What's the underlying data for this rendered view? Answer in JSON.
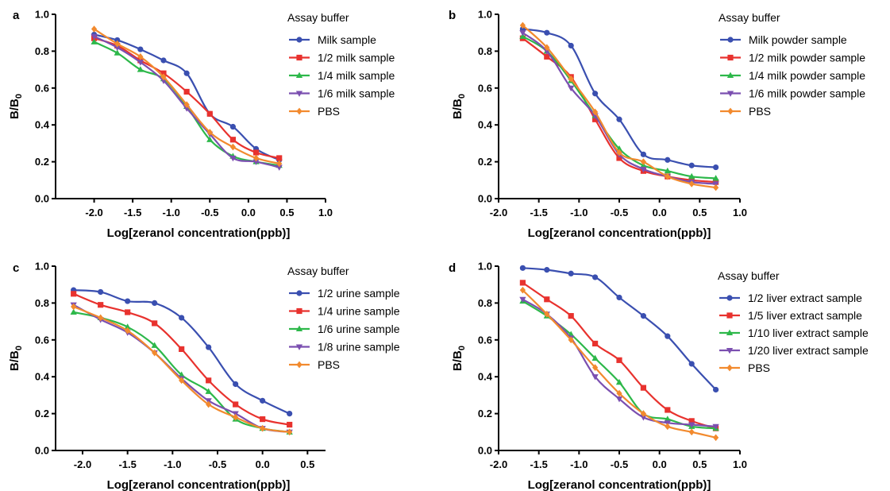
{
  "chart_data": [
    {
      "panel": "a",
      "type": "line",
      "xlabel": "Log[zeranol concentration(ppb)]",
      "ylabel": "B/B0",
      "xlim": [
        -2.5,
        1.0
      ],
      "ylim": [
        0.0,
        1.0
      ],
      "xticks": [
        "-2.0",
        "-1.5",
        "-1.0",
        "-0.5",
        "0.0",
        "0.5",
        "1.0"
      ],
      "yticks": [
        "0.0",
        "0.2",
        "0.4",
        "0.6",
        "0.8",
        "1.0"
      ],
      "legend_title": "Assay buffer",
      "legend_position": "top-right",
      "x": [
        -2.0,
        -1.7,
        -1.4,
        -1.1,
        -0.8,
        -0.5,
        -0.2,
        0.1,
        0.4
      ],
      "series": [
        {
          "name": "Milk sample",
          "color": "#3a4fb0",
          "marker": "circle",
          "values": [
            0.89,
            0.86,
            0.81,
            0.75,
            0.68,
            0.46,
            0.39,
            0.27,
            0.21
          ]
        },
        {
          "name": "1/2 milk sample",
          "color": "#e8322e",
          "marker": "square",
          "values": [
            0.87,
            0.83,
            0.75,
            0.68,
            0.58,
            0.46,
            0.32,
            0.25,
            0.22
          ]
        },
        {
          "name": "1/4 milk sample",
          "color": "#2db84a",
          "marker": "triangle-up",
          "values": [
            0.85,
            0.79,
            0.7,
            0.65,
            0.5,
            0.32,
            0.23,
            0.2,
            0.18
          ]
        },
        {
          "name": "1/6 milk sample",
          "color": "#7b4fb0",
          "marker": "triangle-down",
          "values": [
            0.88,
            0.82,
            0.74,
            0.64,
            0.49,
            0.35,
            0.22,
            0.2,
            0.17
          ]
        },
        {
          "name": "PBS",
          "color": "#f28a2e",
          "marker": "diamond",
          "values": [
            0.92,
            0.84,
            0.77,
            0.66,
            0.51,
            0.36,
            0.28,
            0.22,
            0.19
          ]
        }
      ]
    },
    {
      "panel": "b",
      "type": "line",
      "xlabel": "Log[zeranol concentration(ppb)]",
      "ylabel": "B/B0",
      "xlim": [
        -2.0,
        1.0
      ],
      "ylim": [
        0.0,
        1.0
      ],
      "xticks": [
        "-2.0",
        "-1.5",
        "-1.0",
        "-0.5",
        "0.0",
        "0.5",
        "1.0"
      ],
      "yticks": [
        "0.0",
        "0.2",
        "0.4",
        "0.6",
        "0.8",
        "1.0"
      ],
      "legend_title": "Assay buffer",
      "legend_position": "top-right",
      "x": [
        -1.7,
        -1.4,
        -1.1,
        -0.8,
        -0.5,
        -0.2,
        0.1,
        0.4,
        0.7
      ],
      "series": [
        {
          "name": "Milk powder sample",
          "color": "#3a4fb0",
          "marker": "circle",
          "values": [
            0.92,
            0.9,
            0.83,
            0.57,
            0.43,
            0.24,
            0.21,
            0.18,
            0.17
          ]
        },
        {
          "name": "1/2 milk powder sample",
          "color": "#e8322e",
          "marker": "square",
          "values": [
            0.87,
            0.77,
            0.66,
            0.43,
            0.22,
            0.15,
            0.12,
            0.1,
            0.09
          ]
        },
        {
          "name": "1/4 milk powder sample",
          "color": "#2db84a",
          "marker": "triangle-up",
          "values": [
            0.88,
            0.8,
            0.64,
            0.45,
            0.27,
            0.18,
            0.15,
            0.12,
            0.11
          ]
        },
        {
          "name": "1/6 milk powder sample",
          "color": "#7b4fb0",
          "marker": "triangle-down",
          "values": [
            0.9,
            0.8,
            0.6,
            0.45,
            0.24,
            0.16,
            0.12,
            0.09,
            0.08
          ]
        },
        {
          "name": "PBS",
          "color": "#f28a2e",
          "marker": "diamond",
          "values": [
            0.94,
            0.82,
            0.65,
            0.47,
            0.25,
            0.2,
            0.12,
            0.08,
            0.06
          ]
        }
      ]
    },
    {
      "panel": "c",
      "type": "line",
      "xlabel": "Log[zeranol concentration(ppb)]",
      "ylabel": "B/B0",
      "xlim": [
        -2.3,
        0.7
      ],
      "ylim": [
        0.0,
        1.0
      ],
      "xticks": [
        "-2.0",
        "-1.5",
        "-1.0",
        "-0.5",
        "0.0",
        "0.5"
      ],
      "yticks": [
        "0.0",
        "0.2",
        "0.4",
        "0.6",
        "0.8",
        "1.0"
      ],
      "legend_title": "Assay buffer",
      "legend_position": "top-right",
      "x": [
        -2.1,
        -1.8,
        -1.5,
        -1.2,
        -0.9,
        -0.6,
        -0.3,
        0.0,
        0.3
      ],
      "series": [
        {
          "name": "1/2 urine sample",
          "color": "#3a4fb0",
          "marker": "circle",
          "values": [
            0.87,
            0.86,
            0.81,
            0.8,
            0.72,
            0.56,
            0.36,
            0.27,
            0.2
          ]
        },
        {
          "name": "1/4 urine sample",
          "color": "#e8322e",
          "marker": "square",
          "values": [
            0.85,
            0.79,
            0.75,
            0.69,
            0.55,
            0.38,
            0.25,
            0.17,
            0.14
          ]
        },
        {
          "name": "1/6 urine sample",
          "color": "#2db84a",
          "marker": "triangle-up",
          "values": [
            0.75,
            0.72,
            0.67,
            0.57,
            0.41,
            0.32,
            0.17,
            0.12,
            0.1
          ]
        },
        {
          "name": "1/8 urine sample",
          "color": "#7b4fb0",
          "marker": "triangle-down",
          "values": [
            0.79,
            0.71,
            0.64,
            0.53,
            0.39,
            0.27,
            0.2,
            0.12,
            0.1
          ]
        },
        {
          "name": "PBS",
          "color": "#f28a2e",
          "marker": "diamond",
          "values": [
            0.78,
            0.72,
            0.65,
            0.53,
            0.38,
            0.25,
            0.18,
            0.12,
            0.1
          ]
        }
      ]
    },
    {
      "panel": "d",
      "type": "line",
      "xlabel": "Log[zeranol concentration(ppb)]",
      "ylabel": "B/B0",
      "xlim": [
        -2.0,
        1.0
      ],
      "ylim": [
        0.0,
        1.0
      ],
      "xticks": [
        "-2.0",
        "-1.5",
        "-1.0",
        "-0.5",
        "0.0",
        "0.5",
        "1.0"
      ],
      "yticks": [
        "0.0",
        "0.2",
        "0.4",
        "0.6",
        "0.8",
        "1.0"
      ],
      "legend_title": "Assay buffer",
      "legend_position": "top-right",
      "x": [
        -1.7,
        -1.4,
        -1.1,
        -0.8,
        -0.5,
        -0.2,
        0.1,
        0.4,
        0.7
      ],
      "series": [
        {
          "name": "1/2   liver extract sample",
          "color": "#3a4fb0",
          "marker": "circle",
          "values": [
            0.99,
            0.98,
            0.96,
            0.94,
            0.83,
            0.73,
            0.62,
            0.47,
            0.33
          ]
        },
        {
          "name": "1/5   liver extract sample",
          "color": "#e8322e",
          "marker": "square",
          "values": [
            0.91,
            0.82,
            0.73,
            0.58,
            0.49,
            0.34,
            0.22,
            0.16,
            0.12
          ]
        },
        {
          "name": "1/10 liver extract sample",
          "color": "#2db84a",
          "marker": "triangle-up",
          "values": [
            0.81,
            0.73,
            0.63,
            0.5,
            0.37,
            0.2,
            0.17,
            0.13,
            0.12
          ]
        },
        {
          "name": "1/20 liver extract sample",
          "color": "#7b4fb0",
          "marker": "triangle-down",
          "values": [
            0.82,
            0.74,
            0.61,
            0.4,
            0.28,
            0.18,
            0.15,
            0.14,
            0.13
          ]
        },
        {
          "name": "PBS",
          "color": "#f28a2e",
          "marker": "diamond",
          "values": [
            0.87,
            0.74,
            0.6,
            0.45,
            0.31,
            0.2,
            0.13,
            0.1,
            0.07
          ]
        }
      ]
    }
  ]
}
